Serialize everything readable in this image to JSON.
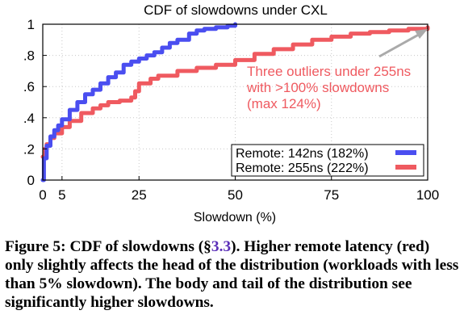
{
  "chart_data": {
    "type": "line",
    "title": "CDF of slowdowns under CXL",
    "xlabel": "Slowdown (%)",
    "ylabel": "",
    "xlim": [
      0,
      100
    ],
    "ylim": [
      0,
      1
    ],
    "xticks": [
      0,
      5,
      25,
      50,
      75,
      100
    ],
    "xtick_labels": [
      "0",
      "5",
      "25",
      "50",
      "75",
      "100"
    ],
    "yticks": [
      0,
      0.2,
      0.4,
      0.6,
      0.8,
      1
    ],
    "ytick_labels": [
      "0",
      ".2",
      ".4",
      ".6",
      ".8",
      "1"
    ],
    "grid": true,
    "legend_position": "bottom-right",
    "series": [
      {
        "name": "Remote: 142ns (182%)",
        "color": "#4a4ef0",
        "x": [
          0,
          0.3,
          1,
          2,
          3,
          4,
          5,
          7,
          9,
          11,
          13,
          15,
          17,
          19,
          21,
          23,
          25,
          27,
          29,
          31,
          33,
          35,
          38,
          40,
          42,
          45,
          48,
          50
        ],
        "y": [
          0.0,
          0.14,
          0.22,
          0.28,
          0.32,
          0.35,
          0.39,
          0.45,
          0.5,
          0.55,
          0.58,
          0.62,
          0.66,
          0.69,
          0.74,
          0.76,
          0.78,
          0.8,
          0.82,
          0.85,
          0.88,
          0.9,
          0.94,
          0.96,
          0.97,
          0.98,
          0.99,
          1.0
        ]
      },
      {
        "name": "Remote: 255ns (222%)",
        "color": "#ef5a60",
        "x": [
          0,
          0.5,
          1,
          2,
          3,
          5,
          7,
          10,
          13,
          15,
          17,
          20,
          23,
          24,
          25,
          28,
          30,
          35,
          40,
          45,
          50,
          55,
          60,
          65,
          70,
          75,
          80,
          85,
          90,
          95,
          100
        ],
        "y": [
          0.15,
          0.2,
          0.23,
          0.27,
          0.3,
          0.34,
          0.38,
          0.43,
          0.46,
          0.48,
          0.5,
          0.51,
          0.53,
          0.57,
          0.62,
          0.65,
          0.67,
          0.7,
          0.72,
          0.74,
          0.77,
          0.81,
          0.84,
          0.87,
          0.9,
          0.92,
          0.94,
          0.95,
          0.96,
          0.97,
          0.98
        ]
      }
    ],
    "annotation": {
      "lines": [
        "Three outliers under 255ns",
        "with >100% slowdowns",
        "(max 124%)"
      ],
      "color": "#ef5a60"
    }
  },
  "caption": {
    "label": "Figure 5:",
    "text_before_ref": "CDF of slowdowns (§",
    "ref": "3.3",
    "text_after_ref": "). Higher remote latency (red) only slightly affects the head of the distribution (workloads with less than 5% slowdown). The body and tail of the distribution see significantly higher slowdowns."
  }
}
